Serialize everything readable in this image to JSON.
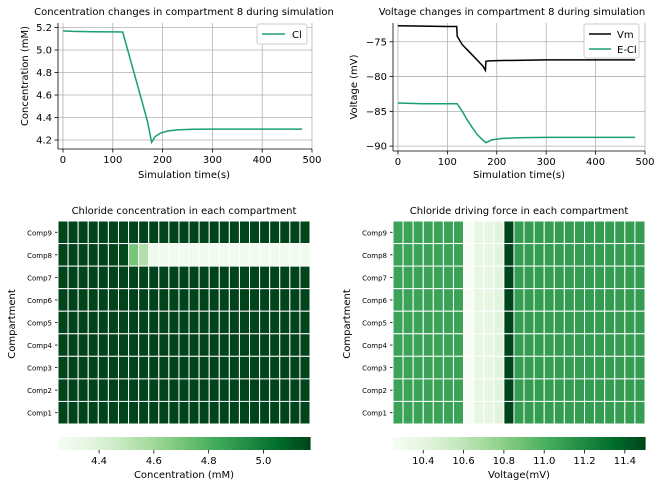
{
  "chart_data": [
    {
      "type": "line",
      "title": "Concentration changes in compartment 8 during simulation",
      "xlabel": "Simulation time(s)",
      "ylabel": "Concentration (mM)",
      "xlim": [
        -10,
        500
      ],
      "ylim": [
        4.12,
        5.24
      ],
      "xticks": [
        0,
        100,
        200,
        300,
        400,
        500
      ],
      "xtick_labels": [
        "0",
        "100",
        "200",
        "300",
        "400",
        "500"
      ],
      "yticks": [
        4.2,
        4.4,
        4.6,
        4.8,
        5.0,
        5.2
      ],
      "ytick_labels": [
        "4.2",
        "4.4",
        "4.6",
        "4.8",
        "5.0",
        "5.2"
      ],
      "grid": true,
      "legend_position": "top-right",
      "series": [
        {
          "name": "Cl",
          "color": "#1a9e77",
          "x": [
            0,
            20,
            60,
            100,
            120,
            130,
            140,
            150,
            160,
            170,
            178,
            185,
            195,
            210,
            230,
            260,
            300,
            400,
            480
          ],
          "y": [
            5.17,
            5.165,
            5.162,
            5.161,
            5.16,
            5.0,
            4.84,
            4.68,
            4.52,
            4.36,
            4.18,
            4.23,
            4.26,
            4.28,
            4.29,
            4.295,
            4.297,
            4.297,
            4.297
          ]
        }
      ]
    },
    {
      "type": "line",
      "title": "Voltage changes in compartment 8 during simulation",
      "xlabel": "Simulation time(s)",
      "ylabel": "Voltage (mV)",
      "xlim": [
        -10,
        500
      ],
      "ylim": [
        -90.7,
        -72.3
      ],
      "xticks": [
        0,
        100,
        200,
        300,
        400,
        500
      ],
      "xtick_labels": [
        "0",
        "100",
        "200",
        "300",
        "400",
        "500"
      ],
      "yticks": [
        -90,
        -85,
        -80,
        -75
      ],
      "ytick_labels": [
        "−90",
        "−85",
        "−80",
        "−75"
      ],
      "grid": true,
      "legend_position": "top-right",
      "series": [
        {
          "name": "Vm",
          "color": "#000000",
          "x": [
            0,
            50,
            100,
            119,
            120,
            130,
            145,
            160,
            172,
            177,
            178,
            185,
            200,
            300,
            400,
            480
          ],
          "y": [
            -72.7,
            -72.75,
            -72.8,
            -72.8,
            -74.2,
            -75.4,
            -76.5,
            -77.6,
            -78.5,
            -79.1,
            -77.8,
            -77.75,
            -77.7,
            -77.6,
            -77.6,
            -77.6
          ]
        },
        {
          "name": "E-Cl",
          "color": "#1a9e77",
          "x": [
            0,
            50,
            100,
            120,
            130,
            140,
            150,
            160,
            170,
            178,
            190,
            210,
            240,
            300,
            400,
            480
          ],
          "y": [
            -83.8,
            -83.9,
            -83.9,
            -83.9,
            -85.0,
            -86.2,
            -87.3,
            -88.3,
            -89.0,
            -89.5,
            -89.1,
            -88.9,
            -88.8,
            -88.75,
            -88.75,
            -88.75
          ]
        }
      ]
    },
    {
      "type": "heatmap",
      "title": "Chloride concentration in each compartment",
      "ylabel": "Compartment",
      "rows": [
        "Comp9",
        "Comp8",
        "Comp7",
        "Comp6",
        "Comp5",
        "Comp4",
        "Comp3",
        "Comp2",
        "Comp1"
      ],
      "n_columns": 25,
      "colormap": "Greens",
      "vmin": 4.25,
      "vmax": 5.17,
      "values": [
        [
          5.17,
          5.17,
          5.17,
          5.17,
          5.17,
          5.17,
          5.17,
          5.17,
          5.17,
          5.17,
          5.17,
          5.17,
          5.17,
          5.17,
          5.17,
          5.17,
          5.17,
          5.17,
          5.17,
          5.17,
          5.17,
          5.17,
          5.17,
          5.17,
          5.17
        ],
        [
          5.17,
          5.17,
          5.17,
          5.17,
          5.17,
          5.17,
          5.16,
          4.7,
          4.55,
          4.3,
          4.29,
          4.29,
          4.29,
          4.29,
          4.29,
          4.29,
          4.29,
          4.29,
          4.29,
          4.29,
          4.29,
          4.29,
          4.29,
          4.29,
          4.29
        ],
        [
          5.17,
          5.17,
          5.17,
          5.17,
          5.17,
          5.17,
          5.17,
          5.17,
          5.17,
          5.17,
          5.17,
          5.17,
          5.17,
          5.17,
          5.17,
          5.17,
          5.17,
          5.17,
          5.17,
          5.17,
          5.17,
          5.17,
          5.17,
          5.17,
          5.17
        ],
        [
          5.17,
          5.17,
          5.17,
          5.17,
          5.17,
          5.17,
          5.17,
          5.17,
          5.17,
          5.17,
          5.17,
          5.17,
          5.17,
          5.17,
          5.17,
          5.17,
          5.17,
          5.17,
          5.17,
          5.17,
          5.17,
          5.17,
          5.17,
          5.17,
          5.17
        ],
        [
          5.17,
          5.17,
          5.17,
          5.17,
          5.17,
          5.17,
          5.17,
          5.17,
          5.17,
          5.17,
          5.17,
          5.17,
          5.17,
          5.17,
          5.17,
          5.17,
          5.17,
          5.17,
          5.17,
          5.17,
          5.17,
          5.17,
          5.17,
          5.17,
          5.17
        ],
        [
          5.17,
          5.17,
          5.17,
          5.17,
          5.17,
          5.17,
          5.17,
          5.17,
          5.17,
          5.17,
          5.17,
          5.17,
          5.17,
          5.17,
          5.17,
          5.17,
          5.17,
          5.17,
          5.17,
          5.17,
          5.17,
          5.17,
          5.17,
          5.17,
          5.17
        ],
        [
          5.17,
          5.17,
          5.17,
          5.17,
          5.17,
          5.17,
          5.17,
          5.17,
          5.17,
          5.17,
          5.17,
          5.17,
          5.17,
          5.17,
          5.17,
          5.17,
          5.17,
          5.17,
          5.17,
          5.17,
          5.17,
          5.17,
          5.17,
          5.17,
          5.17
        ],
        [
          5.17,
          5.17,
          5.17,
          5.17,
          5.17,
          5.17,
          5.17,
          5.17,
          5.17,
          5.17,
          5.17,
          5.17,
          5.17,
          5.17,
          5.17,
          5.17,
          5.17,
          5.17,
          5.17,
          5.17,
          5.17,
          5.17,
          5.17,
          5.17,
          5.17
        ],
        [
          5.17,
          5.17,
          5.17,
          5.17,
          5.17,
          5.17,
          5.17,
          5.17,
          5.17,
          5.17,
          5.17,
          5.17,
          5.17,
          5.17,
          5.17,
          5.17,
          5.17,
          5.17,
          5.17,
          5.17,
          5.17,
          5.17,
          5.17,
          5.17,
          5.17
        ]
      ],
      "colorbar": {
        "label": "Concentration (mM)",
        "ticks": [
          4.4,
          4.6,
          4.8,
          5.0
        ],
        "tick_labels": [
          "4.4",
          "4.6",
          "4.8",
          "5.0"
        ]
      }
    },
    {
      "type": "heatmap",
      "title": "Chloride driving force in each compartment",
      "ylabel": "Compartment",
      "rows": [
        "Comp9",
        "Comp8",
        "Comp7",
        "Comp6",
        "Comp5",
        "Comp4",
        "Comp3",
        "Comp2",
        "Comp1"
      ],
      "n_columns": 25,
      "colormap": "Greens",
      "vmin": 10.25,
      "vmax": 11.5,
      "columns_values": [
        11.07,
        11.07,
        11.07,
        11.07,
        11.07,
        11.07,
        11.07,
        10.25,
        10.38,
        10.38,
        10.42,
        11.5,
        11.1,
        11.1,
        11.1,
        11.1,
        11.1,
        11.1,
        11.1,
        11.1,
        11.1,
        11.1,
        11.1,
        11.1,
        11.1
      ],
      "colorbar": {
        "label": "Voltage(mV)",
        "ticks": [
          10.4,
          10.6,
          10.8,
          11.0,
          11.2,
          11.4
        ],
        "tick_labels": [
          "10.4",
          "10.6",
          "10.8",
          "11.0",
          "11.2",
          "11.4"
        ]
      }
    }
  ]
}
